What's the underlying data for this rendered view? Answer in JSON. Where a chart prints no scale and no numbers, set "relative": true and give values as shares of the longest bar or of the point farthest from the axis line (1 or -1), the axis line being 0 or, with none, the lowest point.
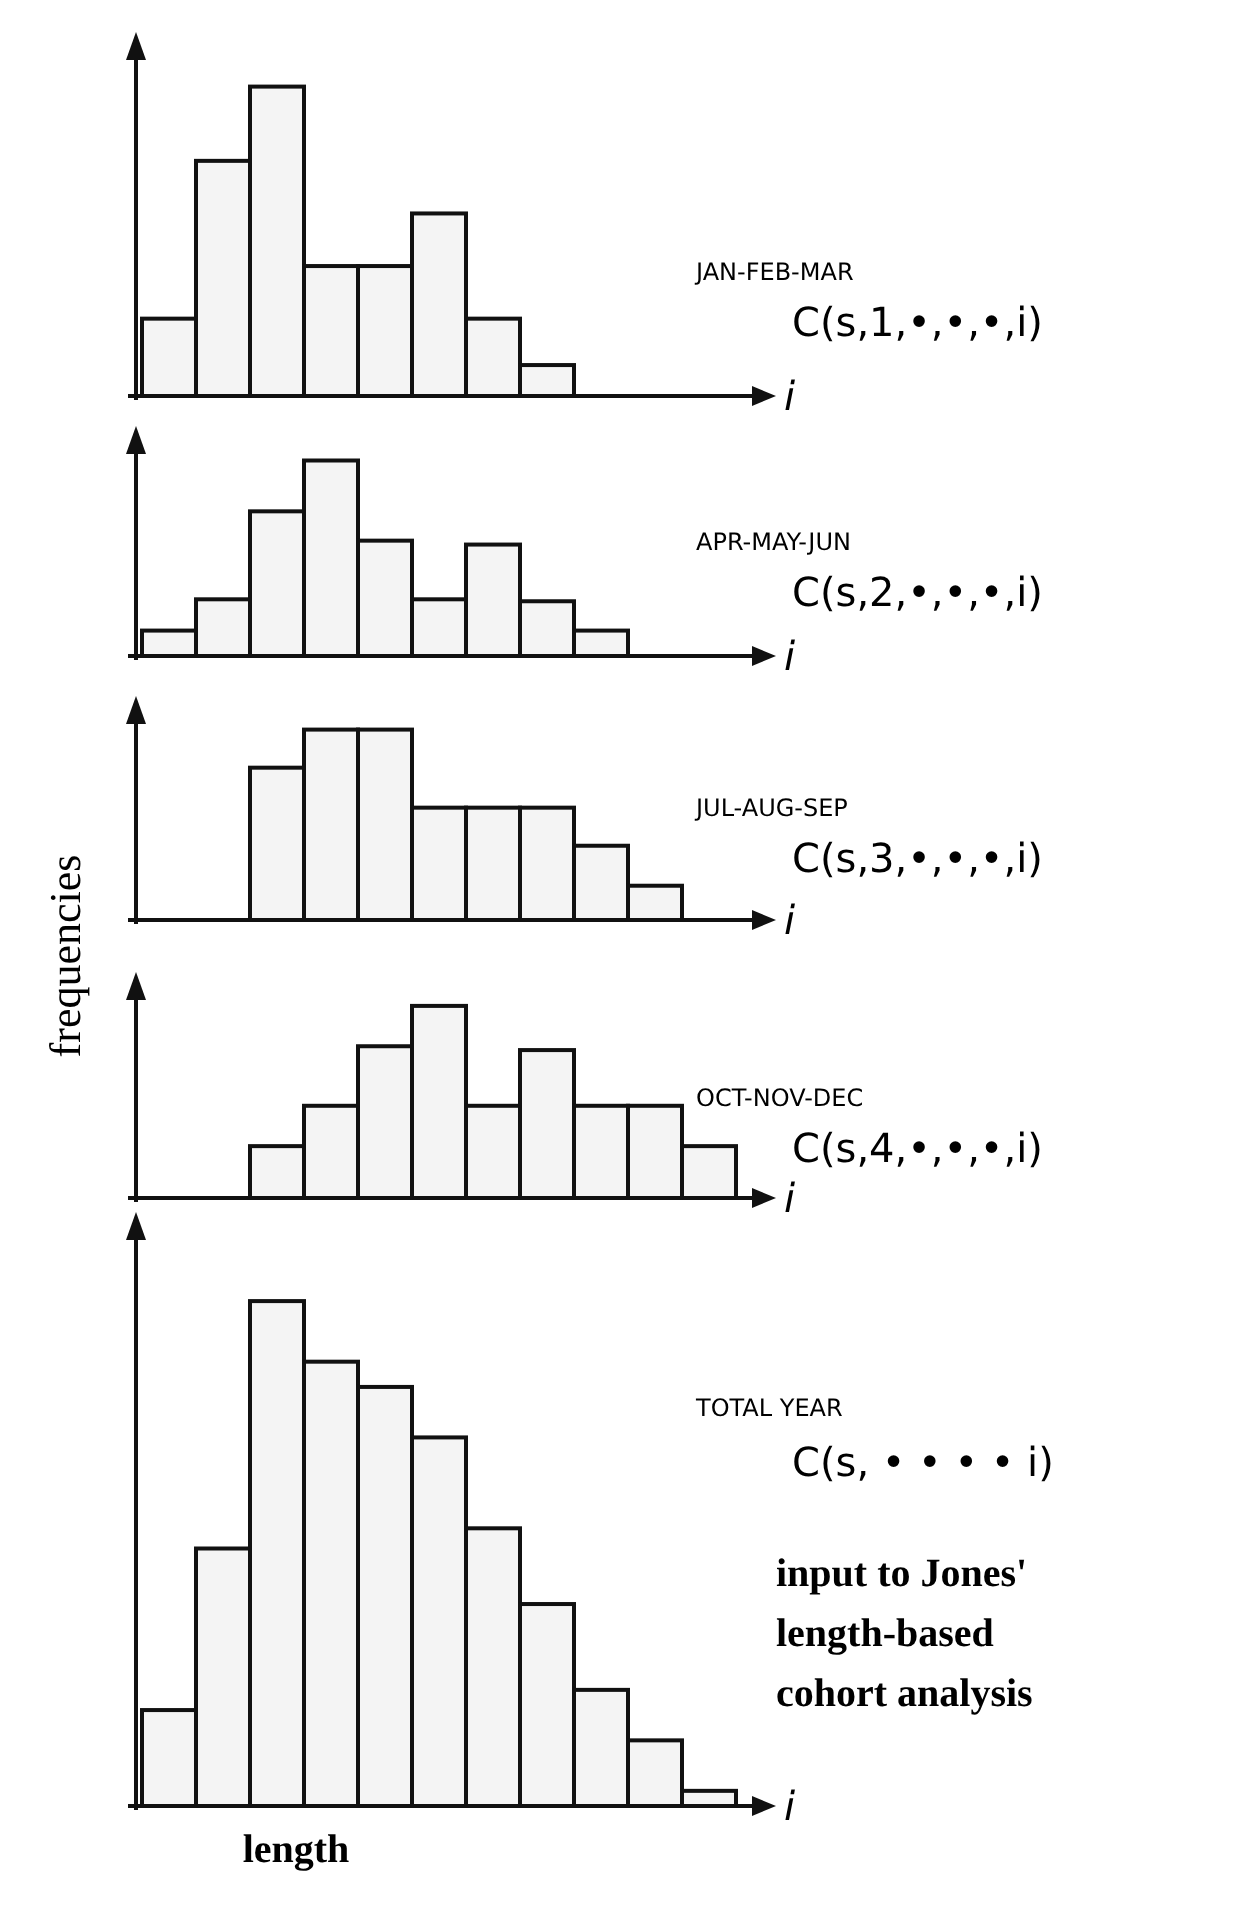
{
  "chart_data": [
    {
      "type": "bar",
      "relative": true,
      "annotations": [
        "JAN-FEB-MAR",
        "C(s,1,•,•,•,i)"
      ],
      "xlabel": "i",
      "categories": [
        null,
        null,
        null,
        null,
        null,
        null,
        null,
        null
      ],
      "values": [
        0.25,
        0.76,
        1,
        0.42,
        0.42,
        0.59,
        0.25,
        0.1
      ],
      "color": "#f4f4f4"
    },
    {
      "type": "bar",
      "relative": true,
      "annotations": [
        "APR-MAY-JUN",
        "C(s,2,•,•,•,i)"
      ],
      "xlabel": "i",
      "categories": [
        null,
        null,
        null,
        null,
        null,
        null,
        null,
        null,
        null
      ],
      "values": [
        0.13,
        0.29,
        0.74,
        1,
        0.59,
        0.29,
        0.57,
        0.28,
        0.13
      ],
      "color": "#f4f4f4"
    },
    {
      "type": "bar",
      "relative": true,
      "annotations": [
        "JUL-AUG-SEP",
        "C(s,3,•,•,•,i)"
      ],
      "xlabel": "i",
      "ylabel": "frequencies",
      "categories": [
        null,
        null,
        null,
        null,
        null,
        null,
        null,
        null
      ],
      "values": [
        0.8,
        1,
        1,
        0.59,
        0.59,
        0.59,
        0.39,
        0.18
      ],
      "color": "#f4f4f4"
    },
    {
      "type": "bar",
      "relative": true,
      "annotations": [
        "OCT-NOV-DEC",
        "C(s,4,•,•,•,i)"
      ],
      "xlabel": "i",
      "categories": [
        null,
        null,
        null,
        null,
        null,
        null,
        null,
        null,
        null
      ],
      "values": [
        0.27,
        0.48,
        0.79,
        1,
        0.48,
        0.77,
        0.48,
        0.48,
        0.27
      ],
      "color": "#f4f4f4"
    },
    {
      "type": "bar",
      "relative": true,
      "annotations": [
        "TOTAL YEAR",
        "C(s, • • • • i)",
        "length",
        "input to Jones' length-based cohort analysis"
      ],
      "xlabel": "i",
      "categories": [
        null,
        null,
        null,
        null,
        null,
        null,
        null,
        null,
        null,
        null,
        null
      ],
      "values": [
        0.19,
        0.51,
        1,
        0.88,
        0.83,
        0.73,
        0.55,
        0.4,
        0.23,
        0.13,
        0.03
      ],
      "color": "#f4f4f4"
    }
  ]
}
